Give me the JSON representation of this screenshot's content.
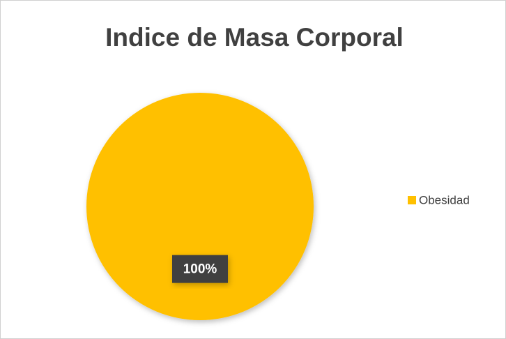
{
  "chart_data": {
    "type": "pie",
    "title": "Indice de Masa Corporal",
    "categories": [
      "Obesidad"
    ],
    "values": [
      100
    ],
    "value_labels": [
      "100%"
    ],
    "colors": [
      "#ffc000"
    ],
    "legend": "right"
  }
}
